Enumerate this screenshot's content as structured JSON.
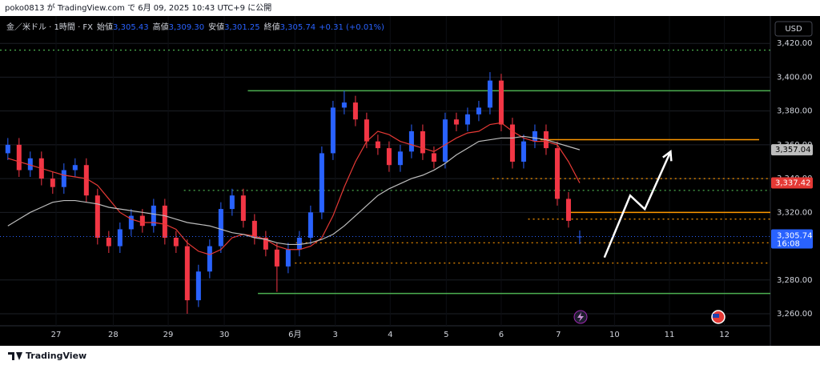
{
  "header": {
    "published": "poko0813 が TradingView.com で 6月 09, 2025 10:43 UTC+9 に公開",
    "brand": "TradingView"
  },
  "chart_data": {
    "type": "candlestick",
    "symbol": "金／米ドル · 1時間 · FX",
    "ohlc_legend": [
      {
        "label": "始値",
        "value": "3,305.43"
      },
      {
        "label": "高値",
        "value": "3,309.30"
      },
      {
        "label": "安値",
        "value": "3,301.25"
      },
      {
        "label": "終値",
        "value": "3,305.74"
      }
    ],
    "change": "+0.31 (+0.01%)",
    "currency": "USD",
    "up_color": "#2962ff",
    "down_color": "#f23645",
    "open": [
      3355,
      3360,
      3345,
      3352,
      3340,
      3335,
      3345,
      3348,
      3330,
      3305,
      3300,
      3310,
      3318,
      3312,
      3324,
      3305,
      3300,
      3268,
      3285,
      3300,
      3322,
      3330,
      3315,
      3305,
      3298,
      3288,
      3298,
      3305,
      3320,
      3355,
      3382,
      3385,
      3375,
      3362,
      3358,
      3348,
      3356,
      3368,
      3355,
      3350,
      3375,
      3372,
      3378,
      3382,
      3398,
      3372,
      3350,
      3362,
      3368,
      3358,
      3328,
      3305.43
    ],
    "high": [
      3364,
      3364,
      3356,
      3356,
      3344,
      3349,
      3352,
      3352,
      3334,
      3309,
      3314,
      3322,
      3322,
      3328,
      3328,
      3309,
      3304,
      3289,
      3304,
      3326,
      3334,
      3334,
      3319,
      3309,
      3302,
      3302,
      3309,
      3324,
      3359,
      3386,
      3392,
      3389,
      3379,
      3366,
      3362,
      3360,
      3372,
      3372,
      3359,
      3379,
      3379,
      3382,
      3386,
      3403,
      3402,
      3376,
      3366,
      3372,
      3372,
      3362,
      3332,
      3309.3
    ],
    "low": [
      3351,
      3341,
      3341,
      3336,
      3331,
      3331,
      3341,
      3326,
      3301,
      3296,
      3296,
      3306,
      3308,
      3308,
      3301,
      3296,
      3260,
      3264,
      3281,
      3296,
      3318,
      3311,
      3301,
      3294,
      3273,
      3284,
      3294,
      3301,
      3316,
      3351,
      3378,
      3371,
      3358,
      3354,
      3344,
      3344,
      3352,
      3351,
      3346,
      3346,
      3368,
      3368,
      3374,
      3378,
      3368,
      3346,
      3346,
      3358,
      3354,
      3324,
      3311,
      3301.25
    ],
    "close": [
      3360,
      3345,
      3352,
      3340,
      3335,
      3345,
      3348,
      3330,
      3305,
      3300,
      3310,
      3318,
      3312,
      3324,
      3305,
      3300,
      3268,
      3285,
      3300,
      3322,
      3330,
      3315,
      3305,
      3298,
      3288,
      3298,
      3305,
      3320,
      3355,
      3382,
      3385,
      3375,
      3362,
      3358,
      3348,
      3356,
      3368,
      3355,
      3350,
      3375,
      3372,
      3378,
      3382,
      3398,
      3372,
      3350,
      3362,
      3368,
      3358,
      3328,
      3315,
      3305.74
    ],
    "last_price_label": "3,305.74",
    "countdown": "16:08",
    "series": [
      {
        "name": "MA short",
        "color": "#e53935",
        "last_label": "3,337.42",
        "values": [
          3352,
          3350,
          3348,
          3346,
          3344,
          3342,
          3341,
          3340,
          3336,
          3328,
          3320,
          3316,
          3314,
          3314,
          3313,
          3310,
          3302,
          3297,
          3295,
          3298,
          3305,
          3307,
          3306,
          3304,
          3300,
          3298,
          3298,
          3300,
          3305,
          3318,
          3335,
          3350,
          3362,
          3368,
          3366,
          3362,
          3360,
          3358,
          3356,
          3360,
          3364,
          3367,
          3368,
          3372,
          3373,
          3368,
          3364,
          3362,
          3362,
          3360,
          3350,
          3337.42
        ]
      },
      {
        "name": "MA long",
        "color": "#bdbdbd",
        "last_label": "3,357.04",
        "values": [
          3312,
          3316,
          3320,
          3323,
          3326,
          3327,
          3327,
          3326,
          3325,
          3323,
          3322,
          3321,
          3320,
          3319,
          3318,
          3316,
          3314,
          3313,
          3312,
          3310,
          3308,
          3307,
          3305,
          3304,
          3302,
          3301,
          3301,
          3302,
          3304,
          3307,
          3312,
          3318,
          3324,
          3330,
          3334,
          3337,
          3340,
          3342,
          3345,
          3349,
          3354,
          3358,
          3362,
          3363,
          3364,
          3364,
          3365,
          3364,
          3363,
          3361,
          3359,
          3357.04
        ]
      }
    ],
    "xlim": [
      -0.7,
      68
    ],
    "xticks": [
      {
        "value": 4.3,
        "label": "27"
      },
      {
        "value": 9.4,
        "label": "28"
      },
      {
        "value": 14.3,
        "label": "29"
      },
      {
        "value": 19.3,
        "label": "30"
      },
      {
        "value": 25.6,
        "label": "6月"
      },
      {
        "value": 29.2,
        "label": "3"
      },
      {
        "value": 34.1,
        "label": "4"
      },
      {
        "value": 39.1,
        "label": "5"
      },
      {
        "value": 44,
        "label": "6"
      },
      {
        "value": 49.1,
        "label": "7"
      },
      {
        "value": 54.1,
        "label": "10"
      },
      {
        "value": 59,
        "label": "11"
      },
      {
        "value": 63.9,
        "label": "12"
      }
    ],
    "ylim": [
      3252.9,
      3436.2
    ],
    "yticks": [
      {
        "value": 3260,
        "label": "3,260.00"
      },
      {
        "value": 3280,
        "label": "3,280.00"
      },
      {
        "value": 3320,
        "label": "3,320.00"
      },
      {
        "value": 3340,
        "label": "3,340.00"
      },
      {
        "value": 3360,
        "label": "3,360.00"
      },
      {
        "value": 3380,
        "label": "3,380.00"
      },
      {
        "value": 3400,
        "label": "3,400.00"
      },
      {
        "value": 3420,
        "label": "3,420.00"
      }
    ],
    "grid": true,
    "levels": [
      {
        "price": 3416,
        "color": "#4caf50",
        "style": "dotted",
        "from": -0.7,
        "to": 68
      },
      {
        "price": 3392,
        "color": "#4caf50",
        "style": "solid",
        "from": 21.4,
        "to": 68
      },
      {
        "price": 3333,
        "color": "#4caf50",
        "style": "dotted",
        "from": 15.7,
        "to": 68
      },
      {
        "price": 3272,
        "color": "#4caf50",
        "style": "solid",
        "from": 22.3,
        "to": 68
      },
      {
        "price": 3363,
        "color": "#ff9800",
        "style": "solid",
        "from": 47.5,
        "to": 67
      },
      {
        "price": 3340,
        "color": "#ff9800",
        "style": "dotted",
        "from": 43.2,
        "to": 68
      },
      {
        "price": 3320,
        "color": "#ff9800",
        "style": "solid",
        "from": 50.1,
        "to": 68
      },
      {
        "price": 3316,
        "color": "#ff9800",
        "style": "dotted",
        "from": 46.4,
        "to": 68
      },
      {
        "price": 3302,
        "color": "#ff9800",
        "style": "dotted",
        "from": 25.7,
        "to": 68
      },
      {
        "price": 3290,
        "color": "#ff9800",
        "style": "dotted",
        "from": 25.6,
        "to": 68
      }
    ],
    "arrow": {
      "color": "#ffffff",
      "x": [
        53.2,
        55.5,
        56.8,
        59.1
      ],
      "y": [
        3293.3,
        3330,
        3321.9,
        3356
      ]
    }
  }
}
